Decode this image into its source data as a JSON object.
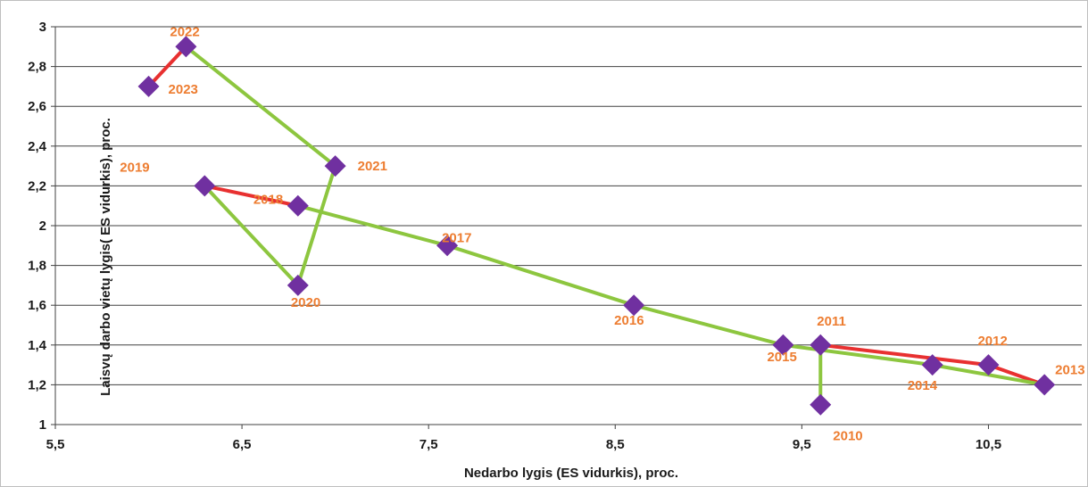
{
  "chart_data": {
    "type": "scatter",
    "title": "",
    "xlabel": "Nedarbo lygis (ES vidurkis), proc.",
    "ylabel": "Laisvų darbo vietų lygis( ES vidurkis), proc.",
    "xlim": [
      5.5,
      11.0
    ],
    "ylim": [
      1.0,
      3.0
    ],
    "x_ticks": [
      5.5,
      6.5,
      7.5,
      8.5,
      9.5,
      10.5
    ],
    "x_tick_labels": [
      "5,5",
      "6,5",
      "7,5",
      "8,5",
      "9,5",
      "10,5"
    ],
    "y_ticks": [
      1.0,
      1.2,
      1.4,
      1.6,
      1.8,
      2.0,
      2.2,
      2.4,
      2.6,
      2.8,
      3.0
    ],
    "y_tick_labels": [
      "1",
      "1,2",
      "1,4",
      "1,6",
      "1,8",
      "2",
      "2,2",
      "2,4",
      "2,6",
      "2,8",
      "3"
    ],
    "grid": "horizontal",
    "marker_color": "#7030a0",
    "label_color": "#ed7d31",
    "line_colors": {
      "increasing": "#e83030",
      "decreasing": "#8dc63f"
    },
    "points": [
      {
        "label": "2010",
        "x": 9.6,
        "y": 1.1
      },
      {
        "label": "2011",
        "x": 9.6,
        "y": 1.4
      },
      {
        "label": "2012",
        "x": 10.5,
        "y": 1.3
      },
      {
        "label": "2013",
        "x": 10.8,
        "y": 1.2
      },
      {
        "label": "2014",
        "x": 10.2,
        "y": 1.3
      },
      {
        "label": "2015",
        "x": 9.4,
        "y": 1.4
      },
      {
        "label": "2016",
        "x": 8.6,
        "y": 1.6
      },
      {
        "label": "2017",
        "x": 7.6,
        "y": 1.9
      },
      {
        "label": "2018",
        "x": 6.8,
        "y": 2.1
      },
      {
        "label": "2019",
        "x": 6.3,
        "y": 2.2
      },
      {
        "label": "2020",
        "x": 6.8,
        "y": 1.7
      },
      {
        "label": "2021",
        "x": 7.0,
        "y": 2.3
      },
      {
        "label": "2022",
        "x": 6.2,
        "y": 2.9
      },
      {
        "label": "2023",
        "x": 6.0,
        "y": 2.7
      }
    ]
  }
}
